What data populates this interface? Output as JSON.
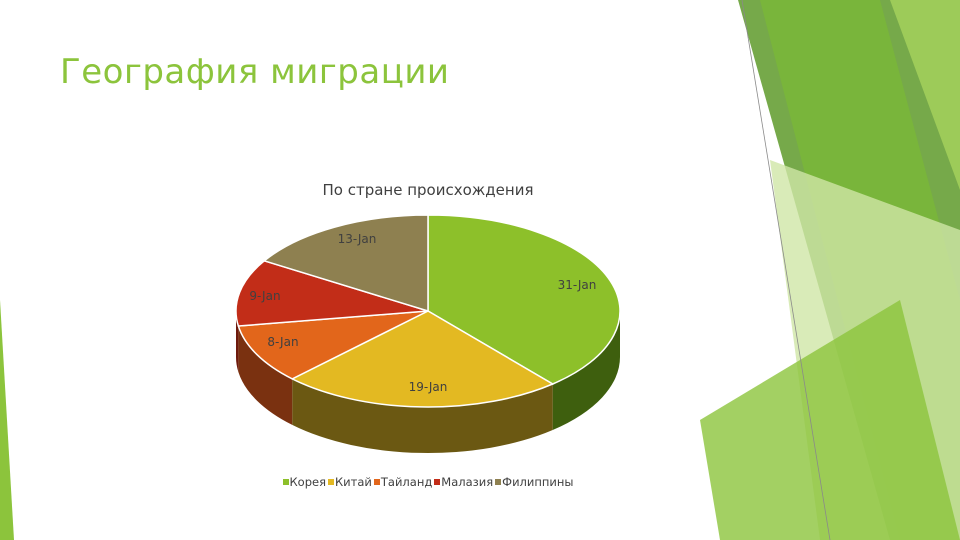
{
  "slide": {
    "title": "География миграции"
  },
  "chart_data": {
    "type": "pie",
    "title": "По стране  происхождения",
    "categories": [
      "Корея",
      "Китай",
      "Тайланд",
      "Малазия",
      "Филиппины"
    ],
    "values": [
      31,
      19,
      8,
      9,
      13
    ],
    "data_labels": [
      "31-Jan",
      "19-Jan",
      "8-Jan",
      "9-Jan",
      "13-Jan"
    ],
    "colors": [
      "#8dc02a",
      "#e3b922",
      "#e2661b",
      "#c22d18",
      "#8e8050"
    ],
    "side_colors": [
      "#3e5f0e",
      "#6b5812",
      "#7a3110",
      "#6e1a0d",
      "#4f4629"
    ],
    "style": "3d",
    "legend_position": "bottom"
  }
}
